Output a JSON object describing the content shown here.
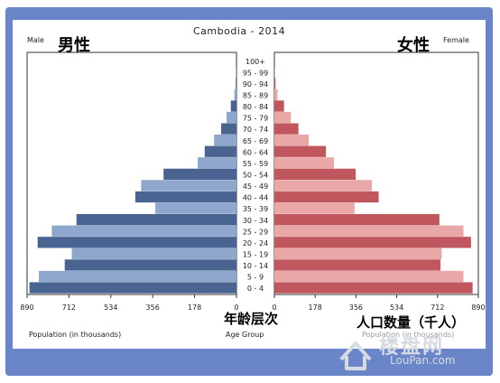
{
  "chart_data": {
    "type": "bar",
    "title": "Cambodia - 2014",
    "male_label": "Male",
    "male_label_cn": "男性",
    "female_label": "Female",
    "female_label_cn": "女性",
    "xlabel_left": "Population (in thousands)",
    "xlabel_center": "Age Group",
    "xlabel_right": "Population (in thousands)",
    "age_label_cn": "年龄层次",
    "units_label_cn": "人口数量（千人）",
    "xlim": [
      0,
      890
    ],
    "ticks_left": [
      "890",
      "712",
      "534",
      "356",
      "178",
      "0"
    ],
    "ticks_right": [
      "0",
      "178",
      "356",
      "534",
      "712",
      "890"
    ],
    "categories": [
      "0 - 4",
      "5 - 9",
      "10 - 14",
      "15 - 19",
      "20 - 24",
      "25 - 29",
      "30 - 34",
      "35 - 39",
      "40 - 44",
      "45 - 49",
      "50 - 54",
      "55 - 59",
      "60 - 64",
      "65 - 69",
      "70 - 74",
      "75 - 79",
      "80 - 84",
      "85 - 89",
      "90 - 94",
      "95 - 99",
      "100+"
    ],
    "series": [
      {
        "name": "Male",
        "values": [
          880,
          840,
          730,
          700,
          845,
          785,
          680,
          345,
          430,
          405,
          310,
          165,
          135,
          95,
          65,
          42,
          24,
          9,
          3,
          1,
          0
        ]
      },
      {
        "name": "Female",
        "values": [
          865,
          825,
          725,
          730,
          858,
          825,
          720,
          350,
          455,
          425,
          355,
          260,
          225,
          150,
          105,
          72,
          42,
          14,
          5,
          1,
          0
        ]
      }
    ],
    "colors": {
      "male_dark": "#4a6491",
      "male_light": "#8fa7cc",
      "female_dark": "#c0575f",
      "female_light": "#e9a7a8",
      "frame": "#6a86c9"
    }
  },
  "watermark": {
    "text_cn": "楼盘网",
    "text_en": "LouPan.com"
  }
}
